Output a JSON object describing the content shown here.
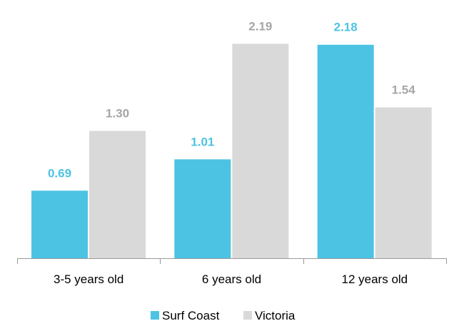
{
  "chart_data": {
    "type": "bar",
    "categories": [
      "3-5 years old",
      "6 years old",
      "12 years old"
    ],
    "series": [
      {
        "name": "Surf Coast",
        "values": [
          0.69,
          1.01,
          2.18
        ],
        "labels": [
          "0.69",
          "1.01",
          "2.18"
        ],
        "color": "#4DC3E3",
        "label_color": "#4DC3E3"
      },
      {
        "name": "Victoria",
        "values": [
          1.3,
          2.19,
          1.54
        ],
        "labels": [
          "1.30",
          "2.19",
          "1.54"
        ],
        "color": "#D9D9D9",
        "label_color": "#A6A6A6"
      }
    ],
    "title": "",
    "xlabel": "",
    "ylabel": "",
    "ylim": [
      0,
      2.2
    ],
    "grid": false,
    "legend_position": "bottom"
  }
}
